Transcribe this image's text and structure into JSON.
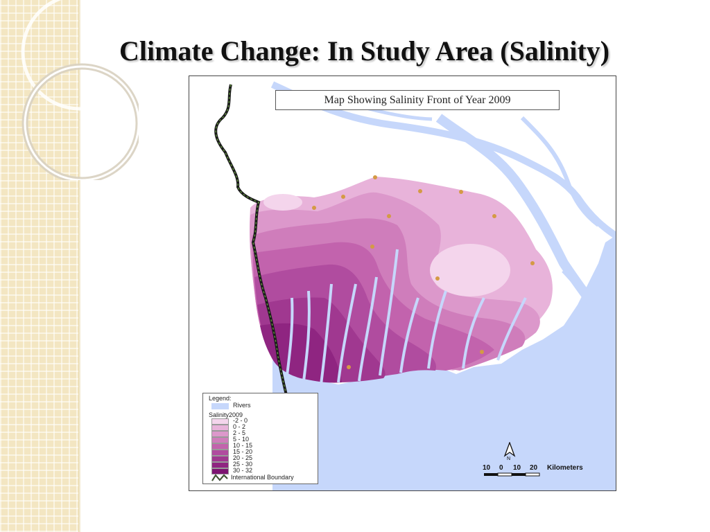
{
  "slide": {
    "title": "Climate Change: In Study Area (Salinity)"
  },
  "map": {
    "title": "Map Showing Salinity Front of Year 2009",
    "legend": {
      "heading": "Legend:",
      "rivers_label": "Rivers",
      "layer_label": "Salinity2009",
      "classes": [
        {
          "range": "-2 - 0",
          "color": "#f4d5ec"
        },
        {
          "range": "0 - 2",
          "color": "#e8b3da"
        },
        {
          "range": "2 - 5",
          "color": "#dc98cb"
        },
        {
          "range": "5 - 10",
          "color": "#cf7dbb"
        },
        {
          "range": "10 - 15",
          "color": "#c263ad"
        },
        {
          "range": "15 - 20",
          "color": "#b04c9f"
        },
        {
          "range": "20 - 25",
          "color": "#a03890"
        },
        {
          "range": "25 - 30",
          "color": "#8f2581"
        },
        {
          "range": "30 - 32",
          "color": "#7d1571"
        }
      ],
      "boundary_label": "International Boundary"
    },
    "scale": {
      "ticks": [
        "10",
        "0",
        "10",
        "20"
      ],
      "unit": "Kilometers"
    },
    "north_label": "N",
    "colors": {
      "water": "#c6d7fb",
      "land": "#ffffff",
      "boundary": "#1a1a1a",
      "station": "#d49a45"
    }
  }
}
